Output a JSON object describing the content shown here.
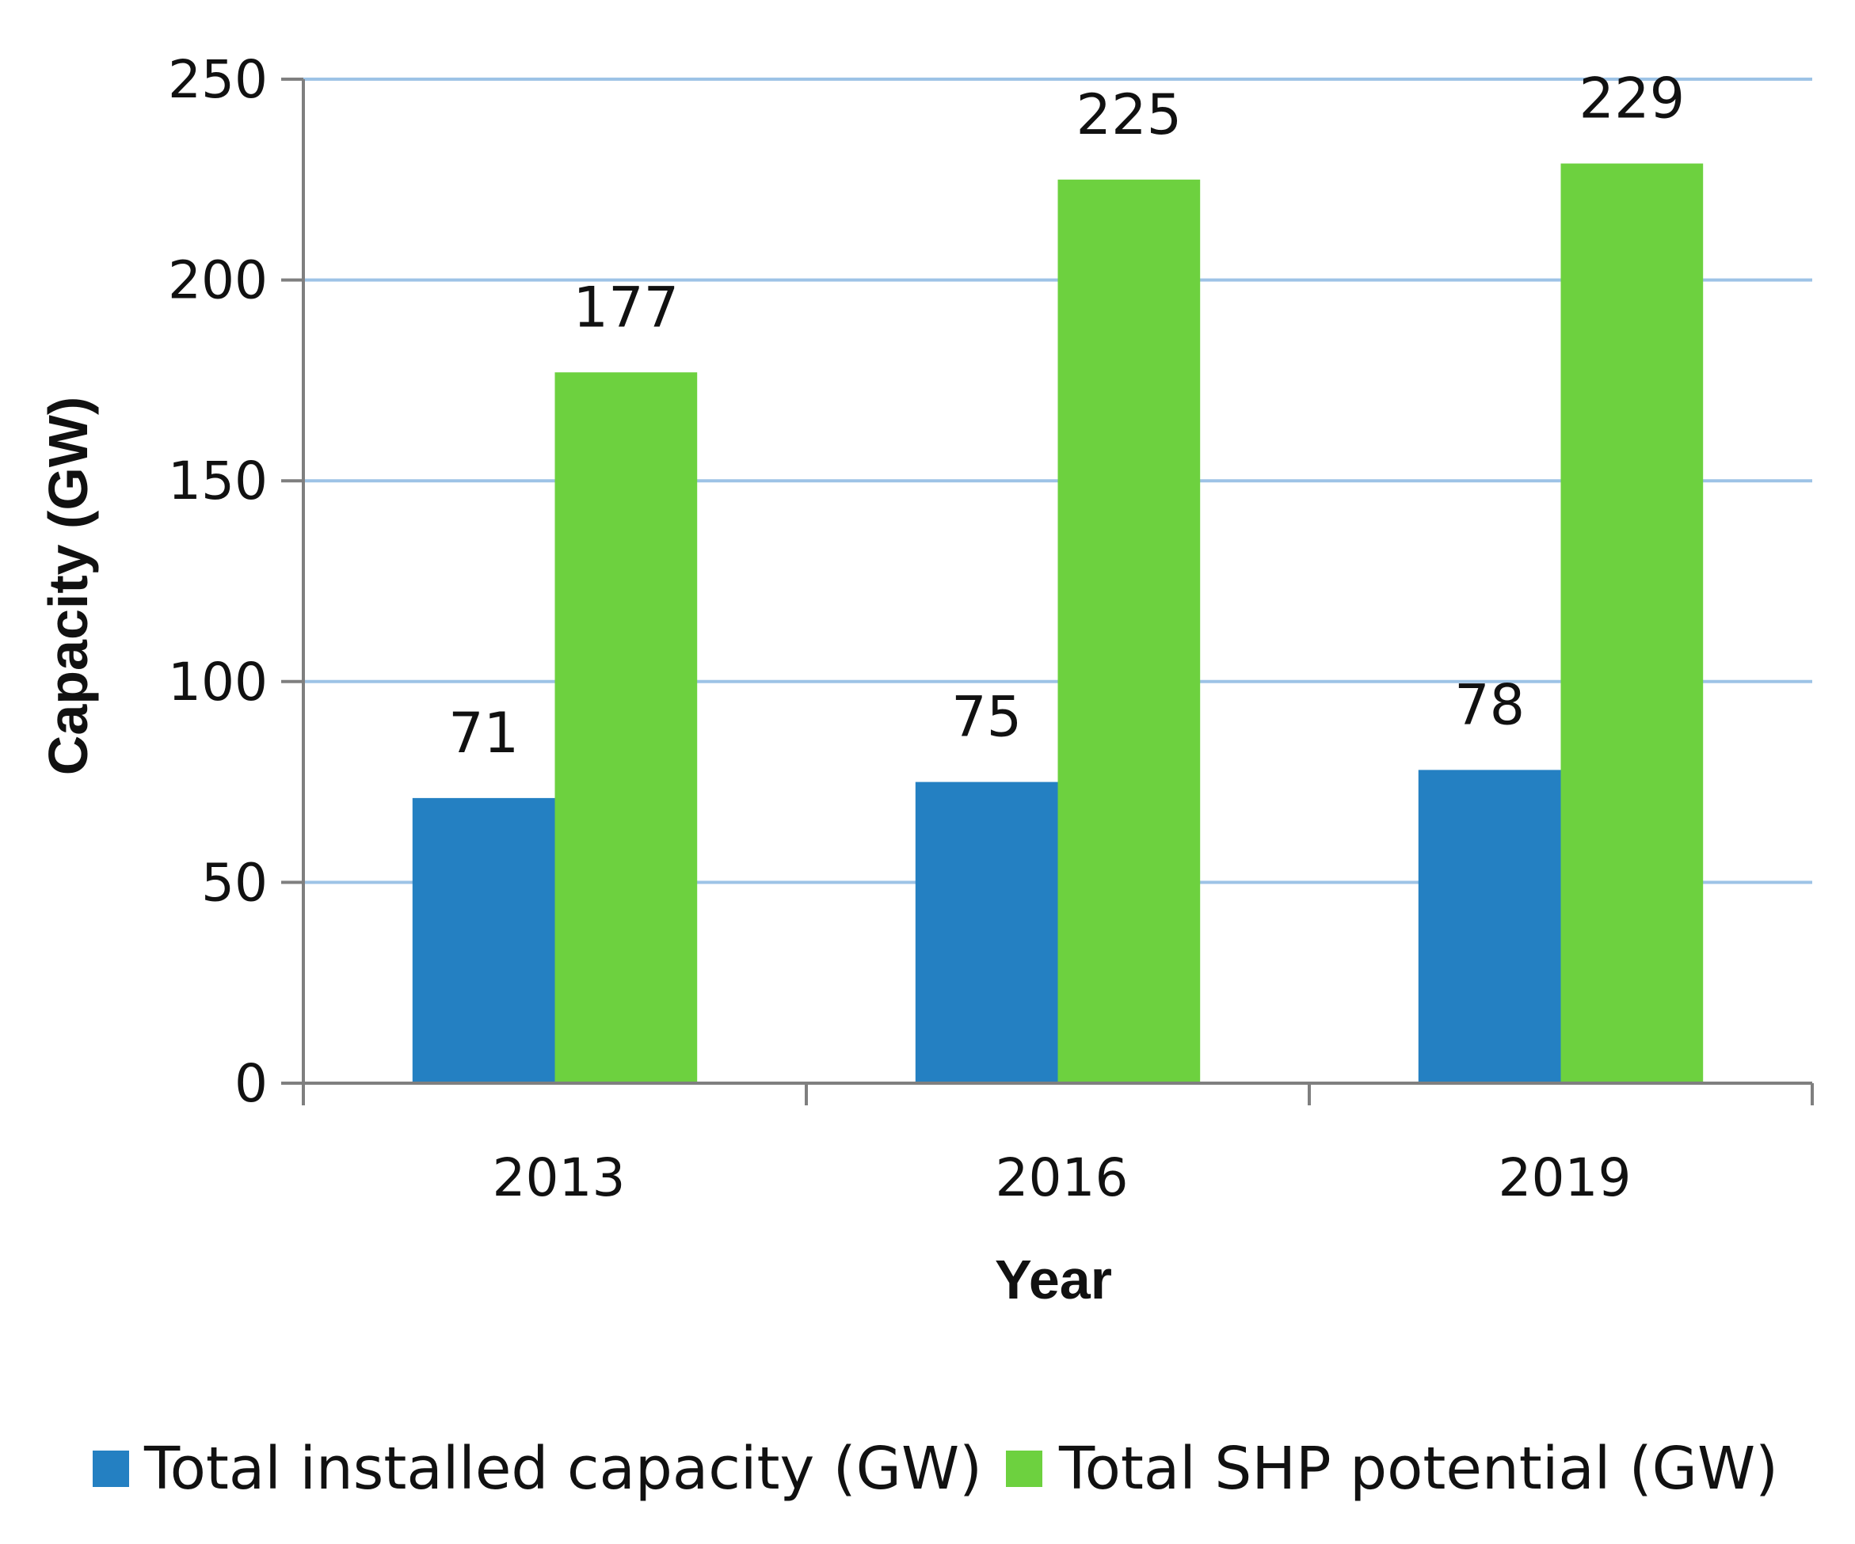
{
  "chart_data": {
    "type": "bar",
    "title": "",
    "xlabel": "Year",
    "ylabel": "Capacity (GW)",
    "categories": [
      "2013",
      "2016",
      "2019"
    ],
    "series": [
      {
        "name": "Total installed capacity (GW)",
        "color": "#2480C2",
        "values": [
          71,
          75,
          78
        ]
      },
      {
        "name": "Total SHP potential (GW)",
        "color": "#6DD13F",
        "values": [
          177,
          225,
          229
        ]
      }
    ],
    "ylim": [
      0,
      250
    ],
    "yticks": [
      0,
      50,
      100,
      150,
      200,
      250
    ],
    "grid": true,
    "grid_color": "#9DC3E6",
    "axis_color": "#7F7F7F",
    "legend_position": "bottom"
  }
}
